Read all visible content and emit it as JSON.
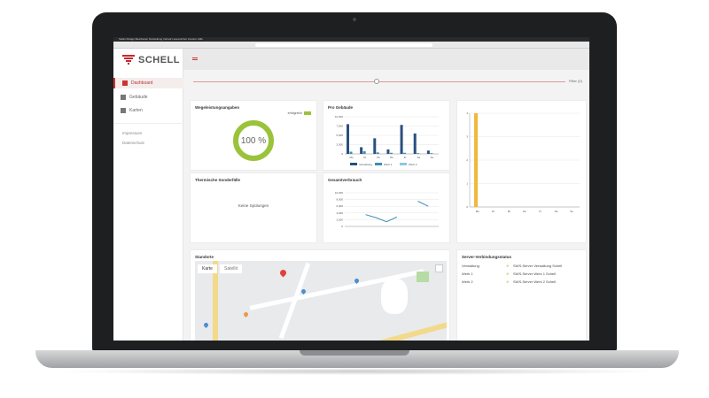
{
  "menubar": "Safari  Ablage  Bearbeiten  Darstellung  Verlauf  Lesezeichen  Fenster  Hilfe",
  "brand": {
    "name": "SCHELL",
    "color": "#c8282e"
  },
  "sidebar": {
    "items": [
      {
        "label": "Dashboard",
        "icon": "dashboard-icon",
        "active": true
      },
      {
        "label": "Gebäude",
        "icon": "home-icon"
      },
      {
        "label": "Karten",
        "icon": "map-icon"
      }
    ],
    "links": [
      "Impressum",
      "Datenschutz"
    ]
  },
  "toolbar": {
    "filter_label": "Filter (0)"
  },
  "cards": {
    "usage": {
      "title": "Wegeleistungsangaben",
      "legend": "erfolgreich",
      "value": "100 %",
      "percent": 100,
      "color": "#9ac33c"
    },
    "thermal": {
      "title": "Thermische Sonderfälle",
      "empty": "Keine Spülungen"
    },
    "per_building": {
      "title": "Pro Gebäude"
    },
    "total": {
      "title": "Gesamtverbrauch"
    },
    "map": {
      "title": "Standorte",
      "tabs": [
        "Karte",
        "Satellit"
      ]
    },
    "server": {
      "title": "Server-Verbindungsstatus",
      "rows": [
        {
          "site": "Verwaltung",
          "name": "SWS-Server Verwaltung Schell"
        },
        {
          "site": "Werk 1",
          "name": "SWS-Server Werk 1 Schell"
        },
        {
          "site": "Werk 2",
          "name": "SWS-Server Werk 2 Schell"
        }
      ]
    }
  },
  "chart_data": [
    {
      "type": "bar",
      "title": "Pro Gebäude",
      "categories": [
        "Mo",
        "Di",
        "Mi",
        "Do",
        "Fr",
        "Sa",
        "So"
      ],
      "ylim": [
        0,
        10000
      ],
      "yticks": [
        "10,000",
        "7,500",
        "5,000",
        "2,500",
        "0"
      ],
      "legend": "bottom",
      "series": [
        {
          "name": "Verwaltung",
          "color": "#2b4f7e",
          "values": [
            8000,
            1800,
            4200,
            1200,
            7800,
            5500,
            900
          ]
        },
        {
          "name": "Werk 1",
          "color": "#3a8fb7",
          "values": [
            600,
            700,
            400,
            300,
            300,
            200,
            200
          ]
        },
        {
          "name": "Werk 2",
          "color": "#8fc7e0",
          "values": [
            0,
            0,
            0,
            0,
            0,
            0,
            0
          ]
        }
      ]
    },
    {
      "type": "line",
      "title": "Gesamtverbrauch",
      "ylim": [
        0,
        10000
      ],
      "yticks": [
        "10,000",
        "8,000",
        "6,000",
        "4,000",
        "2,000",
        "0"
      ],
      "x": [
        1,
        2,
        3,
        4,
        5,
        6,
        7,
        8,
        9,
        10
      ],
      "values": [
        null,
        null,
        3500,
        2600,
        1400,
        2800,
        null,
        7500,
        6000,
        null
      ],
      "color": "#3a8fb7"
    },
    {
      "type": "bar",
      "categories": [
        "Mo",
        "Di",
        "Mi",
        "Do",
        "Fr",
        "Sa",
        "So"
      ],
      "ylim": [
        0,
        4
      ],
      "yticks": [
        "4",
        "3",
        "2",
        "1",
        "0"
      ],
      "values": [
        4,
        0,
        0,
        0,
        0,
        0,
        0
      ],
      "color": "#f0b93a"
    }
  ]
}
